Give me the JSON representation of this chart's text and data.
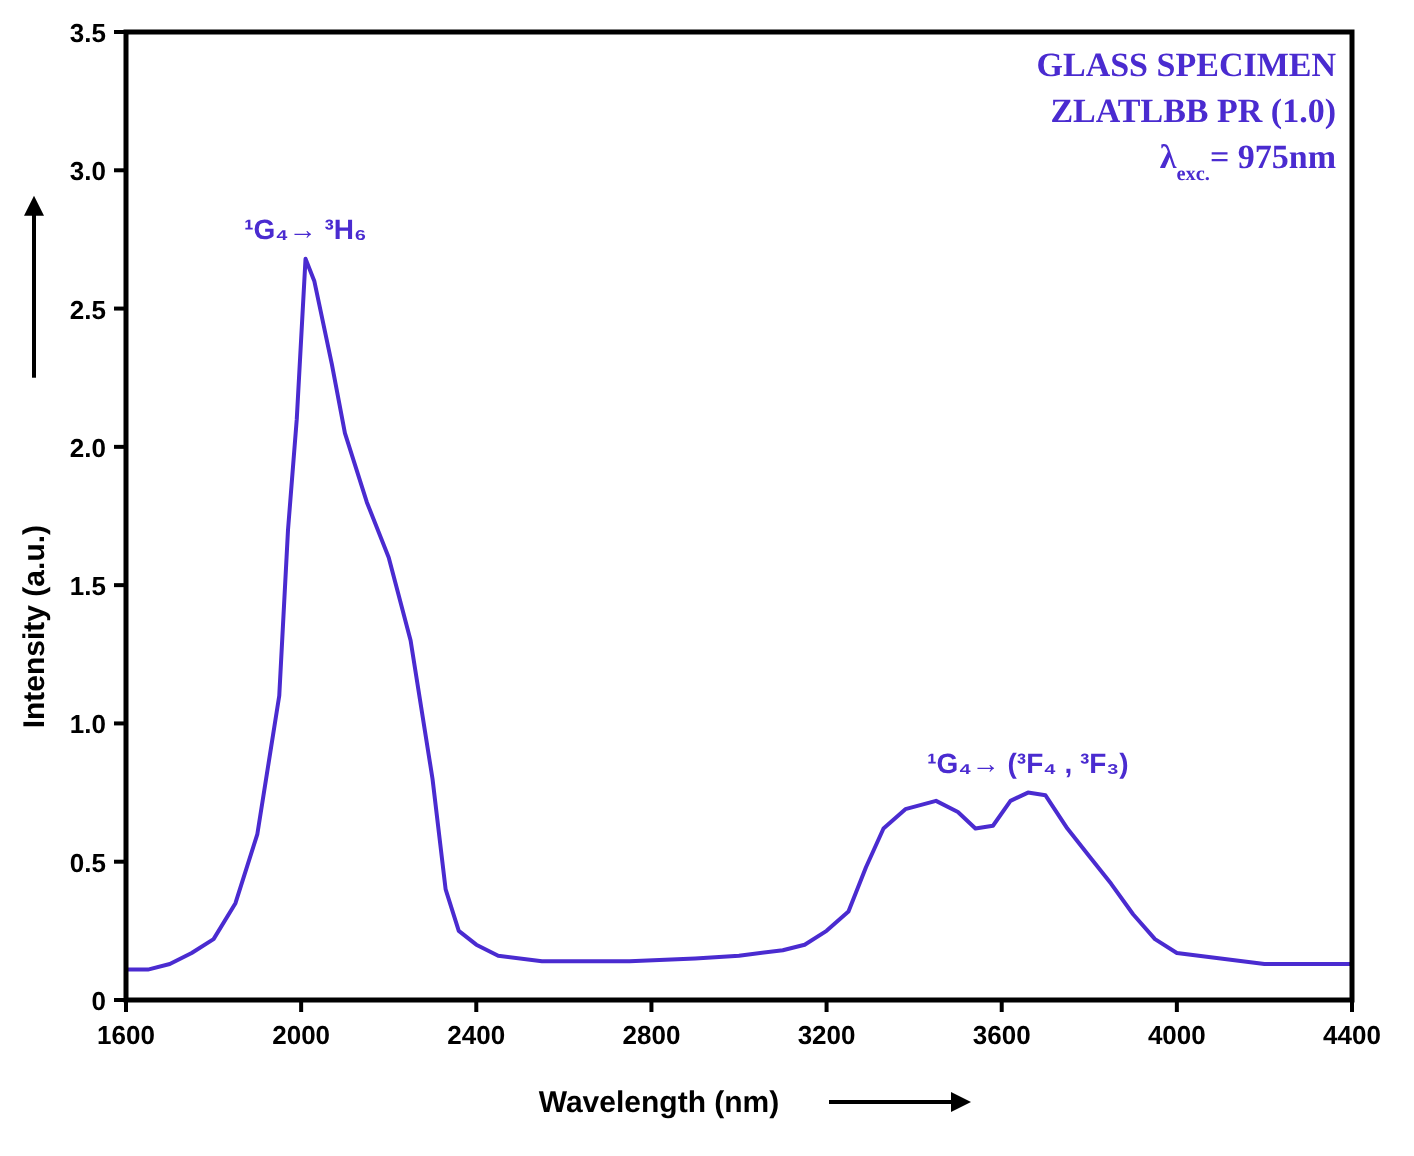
{
  "chart_data": {
    "type": "line",
    "xlabel": "Wavelength (nm)",
    "ylabel": "Intensity (a.u.)",
    "x": [
      1600,
      1650,
      1700,
      1750,
      1800,
      1850,
      1900,
      1950,
      1970,
      1990,
      2010,
      2030,
      2070,
      2100,
      2150,
      2200,
      2250,
      2300,
      2330,
      2360,
      2400,
      2450,
      2550,
      2750,
      2900,
      3000,
      3100,
      3150,
      3200,
      3250,
      3290,
      3330,
      3380,
      3450,
      3500,
      3540,
      3580,
      3620,
      3660,
      3700,
      3750,
      3800,
      3850,
      3900,
      3950,
      4000,
      4100,
      4200,
      4400
    ],
    "series": [
      {
        "color": "#4a2bd0",
        "values": [
          0.11,
          0.11,
          0.13,
          0.17,
          0.22,
          0.35,
          0.6,
          1.1,
          1.7,
          2.1,
          2.68,
          2.6,
          2.3,
          2.05,
          1.8,
          1.6,
          1.3,
          0.8,
          0.4,
          0.25,
          0.2,
          0.16,
          0.14,
          0.14,
          0.15,
          0.16,
          0.18,
          0.2,
          0.25,
          0.32,
          0.48,
          0.62,
          0.69,
          0.72,
          0.68,
          0.62,
          0.63,
          0.72,
          0.75,
          0.74,
          0.62,
          0.52,
          0.42,
          0.31,
          0.22,
          0.17,
          0.15,
          0.13,
          0.13
        ]
      }
    ],
    "xlim": [
      1600,
      4400
    ],
    "xticks": [
      1600,
      2000,
      2400,
      2800,
      3200,
      3600,
      4000,
      4400
    ],
    "ylim": [
      0,
      3.5
    ],
    "yticks": [
      0,
      0.5,
      {
        "value": 1,
        "label": "1.0"
      },
      1.5,
      {
        "value": 2,
        "label": "2.0"
      },
      2.5,
      {
        "value": 3,
        "label": "3.0"
      },
      3.5
    ],
    "grid": false,
    "marker": "none",
    "line_style": "solid",
    "annotations": [
      {
        "text": "¹G₄→ ³H₆",
        "x": 2010,
        "y": 2.68
      },
      {
        "text": "¹G₄→ (³F₄ , ³F₃)",
        "x": 3660,
        "y": 0.75
      },
      "GLASS SPECIMEN",
      "ZLATLBB PR (1.0)",
      "λ$_{exc.}$= 975nm"
    ]
  }
}
